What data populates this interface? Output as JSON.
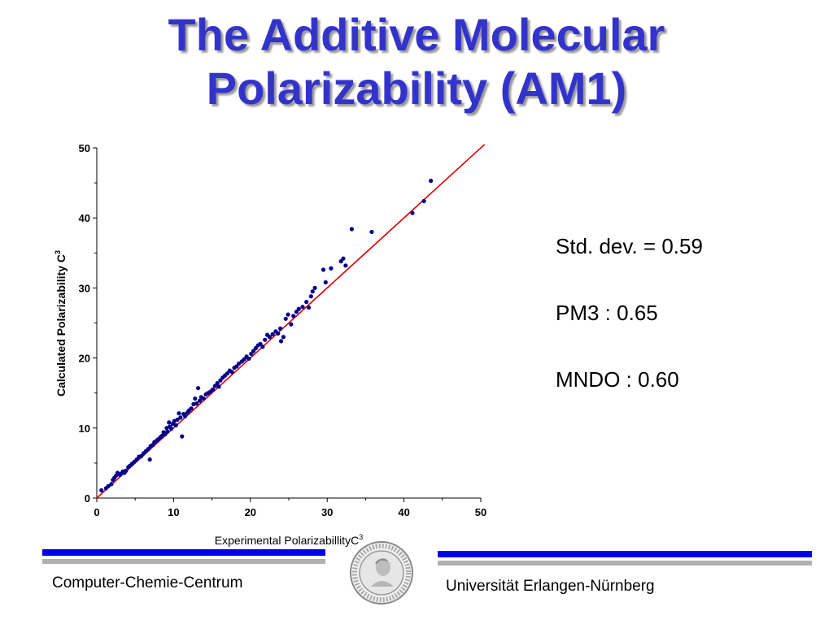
{
  "slide": {
    "title_line1": "The Additive Molecular",
    "title_line2": "Polarizability (AM1)"
  },
  "stats": [
    "Std. dev. = 0.59",
    "PM3 : 0.65",
    "MNDO : 0.60"
  ],
  "footer": {
    "left": "Computer-Chemie-Centrum",
    "right": "Universität Erlangen-Nürnberg",
    "seal_text": "ACADEMIAE FRIDERICO ALEXANDRINAE SIGILLUM"
  },
  "colors": {
    "title": "#3333cc",
    "points": "#00008b",
    "fit_line": "#dd0000",
    "bar_blue": "#0000ee",
    "bar_gray": "#b0b0b0"
  },
  "chart_data": {
    "type": "scatter",
    "xlabel": "Experimental Polarizabillity",
    "xlabel_unit_base": "C",
    "xlabel_unit_sup": "3",
    "ylabel": "Calculated Polarizability",
    "ylabel_unit_base": "C",
    "ylabel_unit_sup": "3",
    "xlim": [
      0,
      50
    ],
    "ylim": [
      0,
      50
    ],
    "xticks": [
      0,
      10,
      20,
      30,
      40,
      50
    ],
    "yticks": [
      0,
      10,
      20,
      30,
      40,
      50
    ],
    "grid": false,
    "fit_line": {
      "x": [
        0,
        50.5
      ],
      "y": [
        0,
        50.5
      ]
    },
    "points": [
      [
        0.6,
        1.1
      ],
      [
        1.2,
        1.4
      ],
      [
        1.5,
        1.7
      ],
      [
        1.9,
        2.0
      ],
      [
        2.1,
        2.6
      ],
      [
        2.3,
        2.9
      ],
      [
        2.5,
        3.2
      ],
      [
        2.7,
        3.6
      ],
      [
        3.0,
        3.3
      ],
      [
        3.2,
        3.5
      ],
      [
        3.4,
        3.8
      ],
      [
        3.6,
        3.6
      ],
      [
        3.8,
        3.9
      ],
      [
        4.1,
        4.4
      ],
      [
        4.3,
        4.6
      ],
      [
        4.6,
        4.9
      ],
      [
        4.9,
        5.2
      ],
      [
        5.2,
        5.5
      ],
      [
        5.5,
        5.9
      ],
      [
        5.8,
        6.0
      ],
      [
        6.1,
        6.4
      ],
      [
        6.4,
        6.7
      ],
      [
        6.7,
        7.0
      ],
      [
        6.9,
        5.5
      ],
      [
        7.0,
        7.4
      ],
      [
        7.3,
        7.6
      ],
      [
        7.5,
        8.0
      ],
      [
        7.8,
        8.2
      ],
      [
        8.0,
        8.4
      ],
      [
        8.3,
        8.7
      ],
      [
        8.5,
        8.9
      ],
      [
        8.7,
        9.4
      ],
      [
        8.9,
        9.1
      ],
      [
        9.1,
        10.0
      ],
      [
        9.2,
        9.5
      ],
      [
        9.4,
        10.8
      ],
      [
        9.5,
        10.2
      ],
      [
        9.7,
        9.9
      ],
      [
        9.9,
        10.6
      ],
      [
        10.1,
        11.0
      ],
      [
        10.3,
        10.4
      ],
      [
        10.5,
        11.2
      ],
      [
        10.7,
        12.1
      ],
      [
        10.9,
        11.5
      ],
      [
        11.1,
        8.8
      ],
      [
        11.3,
        12.0
      ],
      [
        11.5,
        11.7
      ],
      [
        11.8,
        12.2
      ],
      [
        12.0,
        12.5
      ],
      [
        12.3,
        12.8
      ],
      [
        12.6,
        13.4
      ],
      [
        12.8,
        14.2
      ],
      [
        13.0,
        13.5
      ],
      [
        13.2,
        15.7
      ],
      [
        13.4,
        13.9
      ],
      [
        13.6,
        14.4
      ],
      [
        13.9,
        14.2
      ],
      [
        14.2,
        14.8
      ],
      [
        14.5,
        15.0
      ],
      [
        14.8,
        15.2
      ],
      [
        15.1,
        15.5
      ],
      [
        15.4,
        16.0
      ],
      [
        15.7,
        16.4
      ],
      [
        15.9,
        15.9
      ],
      [
        16.1,
        16.8
      ],
      [
        16.4,
        17.2
      ],
      [
        16.7,
        17.5
      ],
      [
        17.0,
        17.8
      ],
      [
        17.3,
        18.2
      ],
      [
        17.6,
        18.0
      ],
      [
        17.9,
        18.6
      ],
      [
        18.2,
        18.8
      ],
      [
        18.5,
        19.2
      ],
      [
        18.9,
        19.5
      ],
      [
        19.2,
        19.8
      ],
      [
        19.5,
        20.2
      ],
      [
        19.8,
        19.9
      ],
      [
        20.1,
        20.6
      ],
      [
        20.4,
        21.0
      ],
      [
        20.7,
        21.4
      ],
      [
        21.0,
        21.8
      ],
      [
        21.3,
        22.0
      ],
      [
        21.6,
        21.6
      ],
      [
        21.9,
        22.6
      ],
      [
        22.2,
        23.3
      ],
      [
        22.5,
        23.0
      ],
      [
        22.9,
        23.4
      ],
      [
        23.3,
        23.8
      ],
      [
        23.6,
        23.5
      ],
      [
        23.9,
        24.2
      ],
      [
        24.0,
        22.4
      ],
      [
        24.3,
        23.0
      ],
      [
        24.6,
        25.6
      ],
      [
        24.9,
        26.2
      ],
      [
        25.3,
        24.8
      ],
      [
        25.6,
        26.0
      ],
      [
        26.0,
        26.6
      ],
      [
        26.3,
        27.0
      ],
      [
        26.8,
        27.3
      ],
      [
        27.3,
        28.0
      ],
      [
        27.6,
        27.2
      ],
      [
        27.9,
        28.8
      ],
      [
        28.1,
        29.5
      ],
      [
        28.4,
        30.0
      ],
      [
        29.5,
        32.6
      ],
      [
        29.8,
        30.8
      ],
      [
        30.5,
        32.8
      ],
      [
        31.8,
        33.8
      ],
      [
        32.1,
        34.2
      ],
      [
        32.4,
        33.2
      ],
      [
        33.2,
        38.4
      ],
      [
        35.8,
        38.0
      ],
      [
        41.1,
        40.7
      ],
      [
        42.6,
        42.4
      ],
      [
        43.5,
        45.3
      ]
    ]
  }
}
